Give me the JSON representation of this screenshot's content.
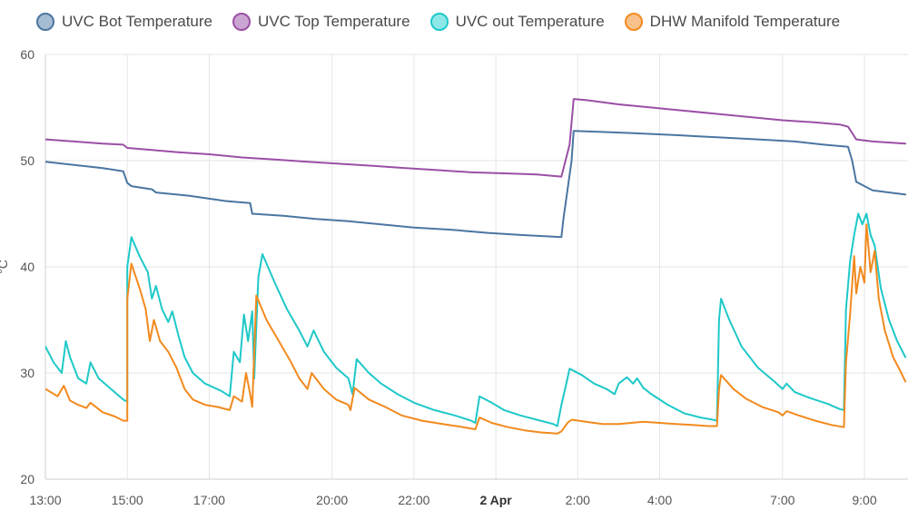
{
  "chart_data": {
    "type": "line",
    "title": "",
    "xlabel": "",
    "ylabel": "°C",
    "ylim": [
      20,
      60
    ],
    "yticks": [
      20,
      30,
      40,
      50,
      60
    ],
    "xlim": [
      13.0,
      33.0
    ],
    "xticks": [
      {
        "x": 13,
        "label": "13:00",
        "bold": false
      },
      {
        "x": 15,
        "label": "15:00",
        "bold": false
      },
      {
        "x": 17,
        "label": "17:00",
        "bold": false
      },
      {
        "x": 20,
        "label": "20:00",
        "bold": false
      },
      {
        "x": 22,
        "label": "22:00",
        "bold": false
      },
      {
        "x": 24,
        "label": "2 Apr",
        "bold": true
      },
      {
        "x": 26,
        "label": "2:00",
        "bold": false
      },
      {
        "x": 28,
        "label": "4:00",
        "bold": false
      },
      {
        "x": 31,
        "label": "7:00",
        "bold": false
      },
      {
        "x": 33,
        "label": "9:00",
        "bold": false
      }
    ],
    "grid": true,
    "legend_position": "top",
    "series": [
      {
        "name": "UVC Bot Temperature",
        "color": "#4a76a1",
        "fill": "#a6bcd3",
        "points": [
          [
            13.0,
            49.9
          ],
          [
            13.7,
            49.6
          ],
          [
            14.4,
            49.3
          ],
          [
            14.9,
            49.0
          ],
          [
            15.0,
            47.9
          ],
          [
            15.1,
            47.6
          ],
          [
            15.6,
            47.3
          ],
          [
            15.7,
            47.0
          ],
          [
            16.5,
            46.7
          ],
          [
            17.4,
            46.2
          ],
          [
            18.0,
            46.0
          ],
          [
            18.05,
            45.0
          ],
          [
            18.8,
            44.8
          ],
          [
            19.6,
            44.5
          ],
          [
            20.4,
            44.3
          ],
          [
            21.2,
            44.0
          ],
          [
            22.0,
            43.7
          ],
          [
            22.9,
            43.5
          ],
          [
            23.8,
            43.2
          ],
          [
            24.6,
            43.0
          ],
          [
            25.6,
            42.8
          ],
          [
            25.65,
            44.5
          ],
          [
            25.85,
            50.0
          ],
          [
            25.9,
            52.8
          ],
          [
            26.6,
            52.7
          ],
          [
            27.3,
            52.6
          ],
          [
            28.4,
            52.4
          ],
          [
            29.4,
            52.2
          ],
          [
            30.4,
            52.0
          ],
          [
            31.3,
            51.8
          ],
          [
            32.0,
            51.5
          ],
          [
            32.6,
            51.3
          ],
          [
            32.7,
            50.0
          ],
          [
            32.8,
            48.0
          ],
          [
            33.2,
            47.2
          ],
          [
            34.0,
            46.8
          ]
        ]
      },
      {
        "name": "UVC Top Temperature",
        "color": "#9b4fa6",
        "fill": "#cba6d2",
        "points": [
          [
            13.0,
            52.0
          ],
          [
            13.7,
            51.8
          ],
          [
            14.4,
            51.6
          ],
          [
            14.9,
            51.5
          ],
          [
            15.0,
            51.2
          ],
          [
            15.6,
            51.0
          ],
          [
            16.2,
            50.8
          ],
          [
            17.0,
            50.6
          ],
          [
            17.8,
            50.3
          ],
          [
            18.6,
            50.1
          ],
          [
            19.4,
            49.9
          ],
          [
            20.2,
            49.7
          ],
          [
            21.0,
            49.5
          ],
          [
            21.8,
            49.3
          ],
          [
            22.6,
            49.1
          ],
          [
            23.4,
            48.9
          ],
          [
            24.2,
            48.8
          ],
          [
            25.0,
            48.7
          ],
          [
            25.6,
            48.5
          ],
          [
            25.8,
            51.5
          ],
          [
            25.9,
            55.8
          ],
          [
            26.2,
            55.7
          ],
          [
            27.0,
            55.3
          ],
          [
            27.8,
            55.0
          ],
          [
            28.6,
            54.7
          ],
          [
            29.4,
            54.4
          ],
          [
            30.2,
            54.1
          ],
          [
            31.0,
            53.8
          ],
          [
            31.8,
            53.6
          ],
          [
            32.4,
            53.4
          ],
          [
            32.6,
            53.2
          ],
          [
            32.8,
            52.0
          ],
          [
            33.2,
            51.8
          ],
          [
            34.0,
            51.6
          ]
        ]
      },
      {
        "name": "UVC out Temperature",
        "color": "#1fc8c8",
        "fill": "#8fe8e8",
        "points": [
          [
            13.0,
            32.5
          ],
          [
            13.2,
            31.0
          ],
          [
            13.4,
            30.0
          ],
          [
            13.5,
            33.0
          ],
          [
            13.6,
            31.5
          ],
          [
            13.8,
            29.5
          ],
          [
            14.0,
            29.0
          ],
          [
            14.1,
            31.0
          ],
          [
            14.3,
            29.5
          ],
          [
            14.6,
            28.5
          ],
          [
            14.9,
            27.5
          ],
          [
            15.0,
            27.3
          ],
          [
            15.0,
            40.0
          ],
          [
            15.1,
            42.8
          ],
          [
            15.3,
            41.0
          ],
          [
            15.5,
            39.5
          ],
          [
            15.6,
            37.0
          ],
          [
            15.7,
            38.2
          ],
          [
            15.85,
            36.0
          ],
          [
            16.0,
            34.8
          ],
          [
            16.1,
            35.8
          ],
          [
            16.25,
            33.5
          ],
          [
            16.4,
            31.5
          ],
          [
            16.6,
            30.0
          ],
          [
            16.9,
            29.0
          ],
          [
            17.3,
            28.3
          ],
          [
            17.5,
            27.8
          ],
          [
            17.6,
            32.0
          ],
          [
            17.75,
            31.0
          ],
          [
            17.85,
            35.5
          ],
          [
            17.95,
            33.0
          ],
          [
            18.05,
            35.8
          ],
          [
            18.1,
            29.5
          ],
          [
            18.2,
            39.0
          ],
          [
            18.3,
            41.2
          ],
          [
            18.6,
            38.5
          ],
          [
            18.9,
            36.0
          ],
          [
            19.2,
            34.0
          ],
          [
            19.4,
            32.5
          ],
          [
            19.55,
            34.0
          ],
          [
            19.8,
            32.0
          ],
          [
            20.1,
            30.5
          ],
          [
            20.4,
            29.5
          ],
          [
            20.5,
            28.0
          ],
          [
            20.6,
            31.3
          ],
          [
            20.9,
            30.0
          ],
          [
            21.2,
            29.0
          ],
          [
            21.6,
            28.0
          ],
          [
            22.0,
            27.2
          ],
          [
            22.5,
            26.5
          ],
          [
            23.0,
            26.0
          ],
          [
            23.4,
            25.5
          ],
          [
            23.5,
            25.3
          ],
          [
            23.6,
            27.8
          ],
          [
            23.9,
            27.2
          ],
          [
            24.2,
            26.5
          ],
          [
            24.6,
            26.0
          ],
          [
            25.0,
            25.6
          ],
          [
            25.4,
            25.2
          ],
          [
            25.5,
            25.0
          ],
          [
            25.6,
            27.0
          ],
          [
            25.75,
            29.5
          ],
          [
            25.8,
            30.4
          ],
          [
            26.1,
            29.8
          ],
          [
            26.4,
            29.0
          ],
          [
            26.7,
            28.5
          ],
          [
            26.9,
            28.0
          ],
          [
            27.0,
            29.0
          ],
          [
            27.2,
            29.6
          ],
          [
            27.35,
            29.0
          ],
          [
            27.45,
            29.5
          ],
          [
            27.6,
            28.6
          ],
          [
            27.8,
            28.0
          ],
          [
            28.2,
            27.0
          ],
          [
            28.6,
            26.2
          ],
          [
            29.0,
            25.8
          ],
          [
            29.3,
            25.6
          ],
          [
            29.4,
            25.5
          ],
          [
            29.45,
            35.0
          ],
          [
            29.5,
            37.0
          ],
          [
            29.7,
            35.0
          ],
          [
            30.0,
            32.5
          ],
          [
            30.4,
            30.5
          ],
          [
            30.8,
            29.2
          ],
          [
            31.0,
            28.5
          ],
          [
            31.1,
            29.0
          ],
          [
            31.3,
            28.2
          ],
          [
            31.7,
            27.6
          ],
          [
            32.1,
            27.1
          ],
          [
            32.4,
            26.6
          ],
          [
            32.5,
            26.5
          ],
          [
            32.55,
            36.0
          ],
          [
            32.65,
            40.5
          ],
          [
            32.75,
            43.0
          ],
          [
            32.85,
            45.0
          ],
          [
            32.95,
            44.0
          ],
          [
            33.05,
            45.0
          ],
          [
            33.15,
            43.0
          ],
          [
            33.25,
            42.0
          ],
          [
            33.4,
            38.0
          ],
          [
            33.6,
            35.0
          ],
          [
            33.8,
            33.0
          ],
          [
            34.0,
            31.5
          ]
        ]
      },
      {
        "name": "DHW Manifold Temperature",
        "color": "#f28a1e",
        "fill": "#f8c18a",
        "points": [
          [
            13.0,
            28.5
          ],
          [
            13.3,
            27.8
          ],
          [
            13.45,
            28.8
          ],
          [
            13.6,
            27.4
          ],
          [
            13.8,
            27.0
          ],
          [
            14.0,
            26.7
          ],
          [
            14.1,
            27.2
          ],
          [
            14.4,
            26.3
          ],
          [
            14.7,
            25.9
          ],
          [
            14.9,
            25.5
          ],
          [
            15.0,
            25.5
          ],
          [
            15.0,
            37.0
          ],
          [
            15.1,
            40.3
          ],
          [
            15.3,
            38.0
          ],
          [
            15.45,
            36.0
          ],
          [
            15.55,
            33.0
          ],
          [
            15.65,
            35.0
          ],
          [
            15.8,
            33.0
          ],
          [
            16.0,
            32.0
          ],
          [
            16.2,
            30.5
          ],
          [
            16.4,
            28.5
          ],
          [
            16.6,
            27.5
          ],
          [
            16.9,
            27.0
          ],
          [
            17.2,
            26.8
          ],
          [
            17.5,
            26.5
          ],
          [
            17.6,
            27.8
          ],
          [
            17.8,
            27.3
          ],
          [
            17.9,
            30.0
          ],
          [
            18.0,
            28.0
          ],
          [
            18.05,
            26.8
          ],
          [
            18.1,
            32.0
          ],
          [
            18.15,
            37.3
          ],
          [
            18.4,
            35.0
          ],
          [
            18.7,
            33.0
          ],
          [
            19.0,
            31.0
          ],
          [
            19.2,
            29.5
          ],
          [
            19.4,
            28.5
          ],
          [
            19.5,
            30.0
          ],
          [
            19.8,
            28.5
          ],
          [
            20.1,
            27.5
          ],
          [
            20.4,
            27.0
          ],
          [
            20.45,
            26.5
          ],
          [
            20.55,
            28.6
          ],
          [
            20.9,
            27.5
          ],
          [
            21.3,
            26.8
          ],
          [
            21.7,
            26.0
          ],
          [
            22.2,
            25.5
          ],
          [
            22.7,
            25.2
          ],
          [
            23.2,
            24.9
          ],
          [
            23.5,
            24.7
          ],
          [
            23.6,
            25.8
          ],
          [
            23.9,
            25.3
          ],
          [
            24.3,
            24.9
          ],
          [
            24.7,
            24.6
          ],
          [
            25.1,
            24.4
          ],
          [
            25.5,
            24.3
          ],
          [
            25.6,
            24.5
          ],
          [
            25.75,
            25.3
          ],
          [
            25.85,
            25.6
          ],
          [
            26.2,
            25.4
          ],
          [
            26.6,
            25.2
          ],
          [
            27.0,
            25.2
          ],
          [
            27.3,
            25.3
          ],
          [
            27.6,
            25.4
          ],
          [
            28.0,
            25.3
          ],
          [
            28.4,
            25.2
          ],
          [
            28.8,
            25.1
          ],
          [
            29.2,
            25.0
          ],
          [
            29.4,
            25.0
          ],
          [
            29.45,
            28.5
          ],
          [
            29.5,
            29.8
          ],
          [
            29.8,
            28.5
          ],
          [
            30.1,
            27.6
          ],
          [
            30.5,
            26.8
          ],
          [
            30.9,
            26.3
          ],
          [
            31.0,
            26.0
          ],
          [
            31.1,
            26.4
          ],
          [
            31.4,
            26.0
          ],
          [
            31.8,
            25.5
          ],
          [
            32.2,
            25.1
          ],
          [
            32.5,
            24.9
          ],
          [
            32.55,
            31.0
          ],
          [
            32.65,
            35.5
          ],
          [
            32.75,
            41.0
          ],
          [
            32.8,
            37.5
          ],
          [
            32.9,
            40.0
          ],
          [
            33.0,
            38.5
          ],
          [
            33.05,
            44.0
          ],
          [
            33.15,
            39.5
          ],
          [
            33.25,
            41.5
          ],
          [
            33.35,
            37.0
          ],
          [
            33.5,
            34.0
          ],
          [
            33.7,
            31.5
          ],
          [
            33.9,
            30.0
          ],
          [
            34.0,
            29.2
          ]
        ]
      }
    ]
  }
}
